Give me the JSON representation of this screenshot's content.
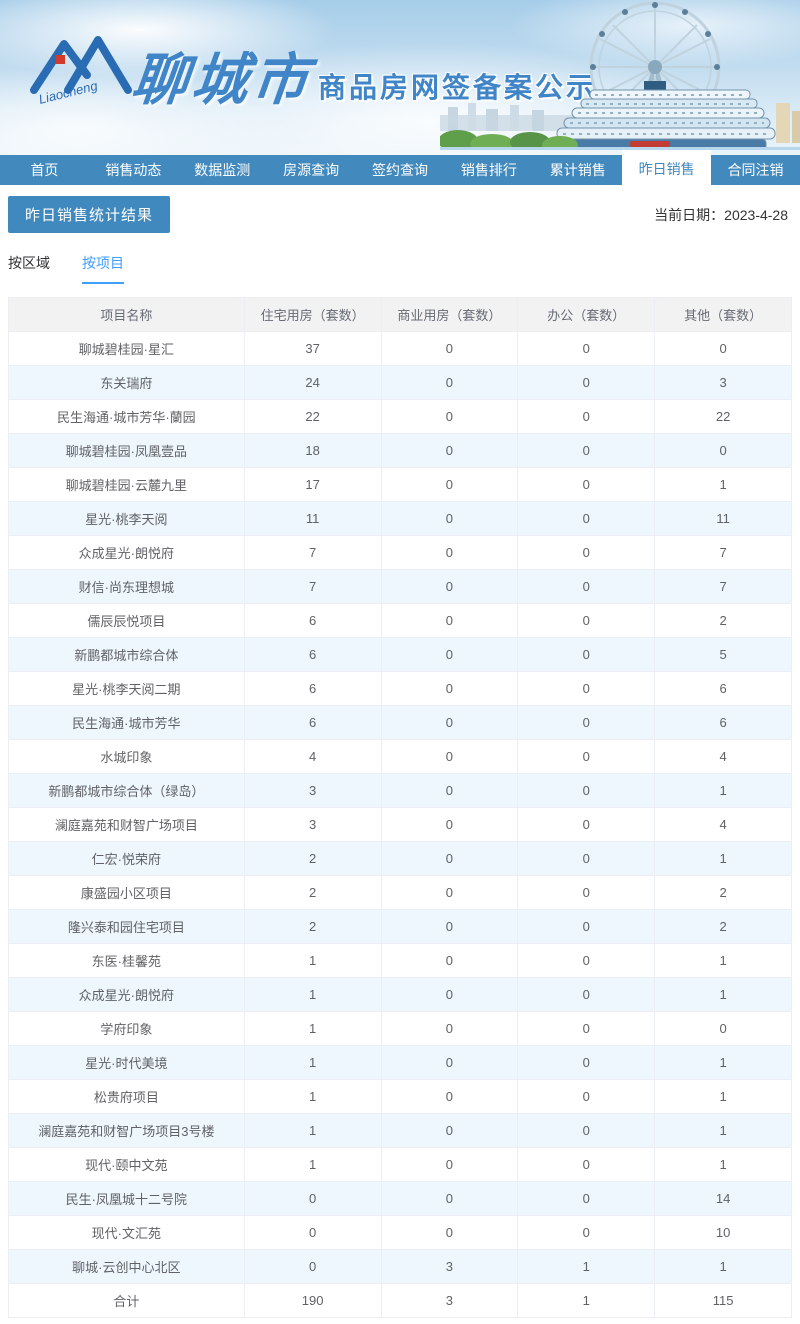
{
  "colors": {
    "nav_blue": "#4289be",
    "badge_blue": "#4089be",
    "accent_blue": "#409eff",
    "logo_blue": "#3f85c8",
    "stripe_blue": "#eef7fd",
    "header_gray": "#f2f2f3"
  },
  "header": {
    "logo_cn": "聊城市",
    "logo_en": "Liaocheng",
    "title": "商品房网签备案公示"
  },
  "nav": {
    "items": [
      {
        "id": "home",
        "label": "首页",
        "active": false
      },
      {
        "id": "sales-dynamics",
        "label": "销售动态",
        "active": false
      },
      {
        "id": "data-monitor",
        "label": "数据监测",
        "active": false
      },
      {
        "id": "listing-query",
        "label": "房源查询",
        "active": false
      },
      {
        "id": "signing-query",
        "label": "签约查询",
        "active": false
      },
      {
        "id": "sales-ranking",
        "label": "销售排行",
        "active": false
      },
      {
        "id": "cumulative-sales",
        "label": "累计销售",
        "active": false
      },
      {
        "id": "yesterday-sales",
        "label": "昨日销售",
        "active": true
      },
      {
        "id": "contract-cancel",
        "label": "合同注销",
        "active": false
      }
    ]
  },
  "toolbar": {
    "section_title": "昨日销售统计结果",
    "date_label": "当前日期：2023-4-28"
  },
  "tabs": [
    {
      "id": "by-region",
      "label": "按区域",
      "active": false
    },
    {
      "id": "by-project",
      "label": "按项目",
      "active": true
    }
  ],
  "chart_data": {
    "type": "table",
    "title": "昨日销售统计结果（按项目）",
    "columns": [
      "项目名称",
      "住宅用房（套数）",
      "商业用房（套数）",
      "办公（套数）",
      "其他（套数）"
    ],
    "rows": [
      {
        "name": "聊城碧桂园·星汇",
        "values": [
          "37",
          "0",
          "0",
          "0"
        ]
      },
      {
        "name": "东关瑞府",
        "values": [
          "24",
          "0",
          "0",
          "3"
        ]
      },
      {
        "name": "民生海通·城市芳华·蘭园",
        "values": [
          "22",
          "0",
          "0",
          "22"
        ]
      },
      {
        "name": "聊城碧桂园·凤凰壹品",
        "values": [
          "18",
          "0",
          "0",
          "0"
        ]
      },
      {
        "name": "聊城碧桂园·云麓九里",
        "values": [
          "17",
          "0",
          "0",
          "1"
        ]
      },
      {
        "name": "星光·桃李天阅",
        "values": [
          "11",
          "0",
          "0",
          "11"
        ]
      },
      {
        "name": "众成星光·朗悦府",
        "values": [
          "7",
          "0",
          "0",
          "7"
        ]
      },
      {
        "name": "财信·尚东理想城",
        "values": [
          "7",
          "0",
          "0",
          "7"
        ]
      },
      {
        "name": "儒辰辰悦项目",
        "values": [
          "6",
          "0",
          "0",
          "2"
        ]
      },
      {
        "name": "新鹏都城市综合体",
        "values": [
          "6",
          "0",
          "0",
          "5"
        ]
      },
      {
        "name": "星光·桃李天阅二期",
        "values": [
          "6",
          "0",
          "0",
          "6"
        ]
      },
      {
        "name": "民生海通·城市芳华",
        "values": [
          "6",
          "0",
          "0",
          "6"
        ]
      },
      {
        "name": "水城印象",
        "values": [
          "4",
          "0",
          "0",
          "4"
        ]
      },
      {
        "name": "新鹏都城市综合体（绿岛）",
        "values": [
          "3",
          "0",
          "0",
          "1"
        ]
      },
      {
        "name": "澜庭嘉苑和财智广场项目",
        "values": [
          "3",
          "0",
          "0",
          "4"
        ]
      },
      {
        "name": "仁宏·悦荣府",
        "values": [
          "2",
          "0",
          "0",
          "1"
        ]
      },
      {
        "name": "康盛园小区项目",
        "values": [
          "2",
          "0",
          "0",
          "2"
        ]
      },
      {
        "name": "隆兴泰和园住宅项目",
        "values": [
          "2",
          "0",
          "0",
          "2"
        ]
      },
      {
        "name": "东医·桂馨苑",
        "values": [
          "1",
          "0",
          "0",
          "1"
        ]
      },
      {
        "name": "众成星光·朗悦府",
        "values": [
          "1",
          "0",
          "0",
          "1"
        ]
      },
      {
        "name": "学府印象",
        "values": [
          "1",
          "0",
          "0",
          "0"
        ]
      },
      {
        "name": "星光·时代美境",
        "values": [
          "1",
          "0",
          "0",
          "1"
        ]
      },
      {
        "name": "松贵府项目",
        "values": [
          "1",
          "0",
          "0",
          "1"
        ]
      },
      {
        "name": "澜庭嘉苑和财智广场项目3号楼",
        "values": [
          "1",
          "0",
          "0",
          "1"
        ]
      },
      {
        "name": "现代·颐中文苑",
        "values": [
          "1",
          "0",
          "0",
          "1"
        ]
      },
      {
        "name": "民生·凤凰城十二号院",
        "values": [
          "0",
          "0",
          "0",
          "14"
        ]
      },
      {
        "name": "现代·文汇苑",
        "values": [
          "0",
          "0",
          "0",
          "10"
        ]
      },
      {
        "name": "聊城·云创中心北区",
        "values": [
          "0",
          "3",
          "1",
          "1"
        ]
      }
    ],
    "total_row": {
      "name": "合计",
      "values": [
        "190",
        "3",
        "1",
        "115"
      ]
    }
  }
}
